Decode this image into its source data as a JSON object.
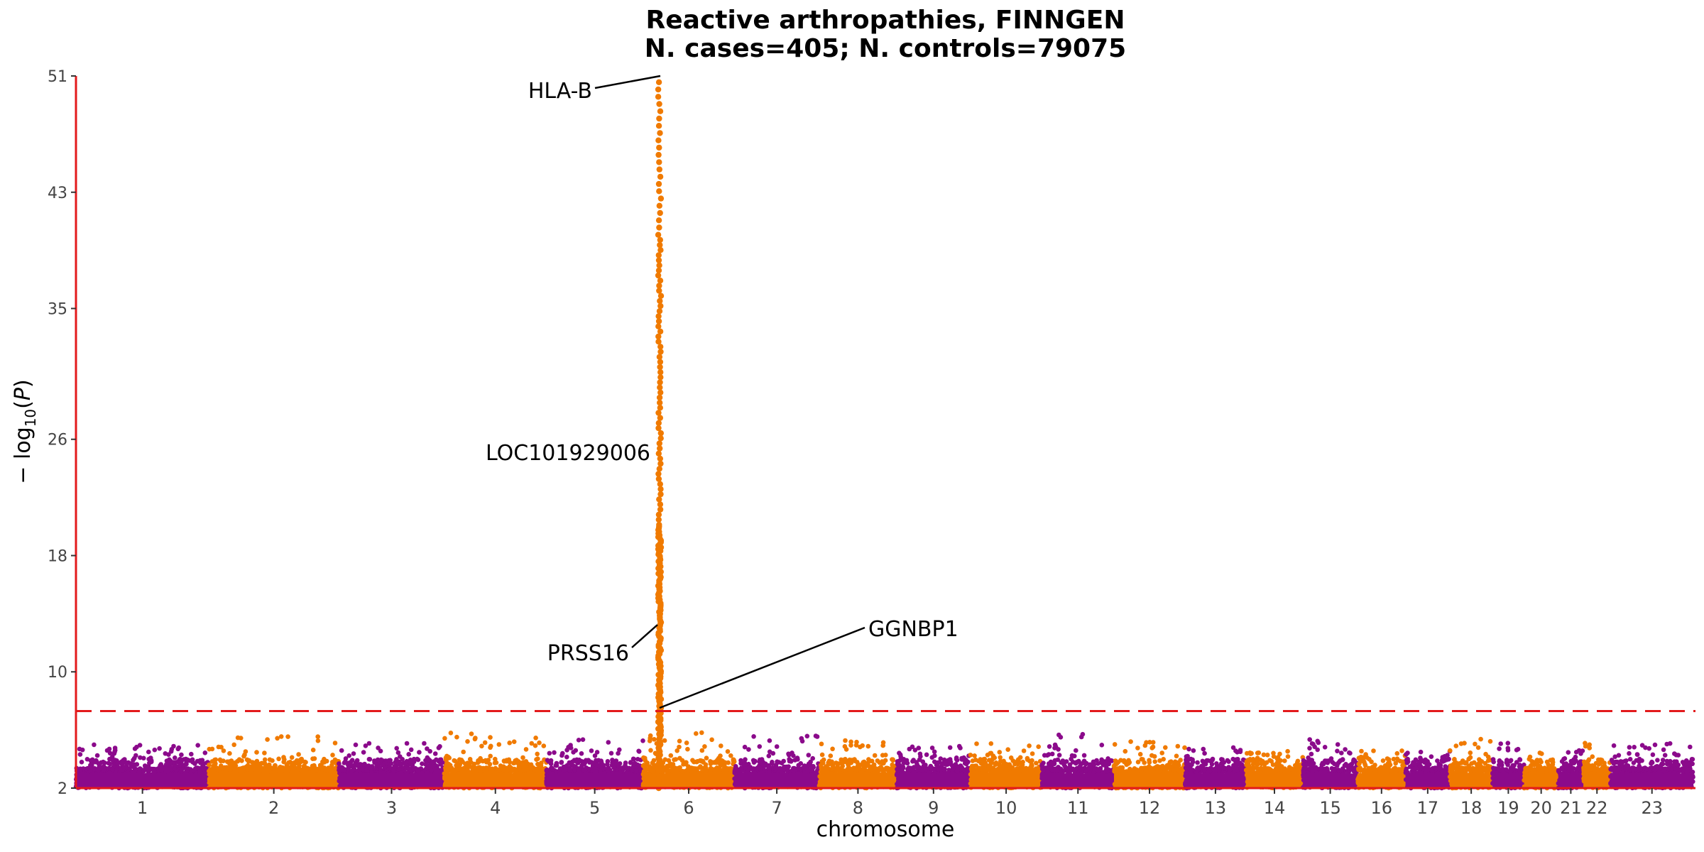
{
  "chart_data": {
    "type": "scatter",
    "subtype": "manhattan",
    "title": "Reactive arthropathies, FINNGEN",
    "subtitle": "N. cases=405; N. controls=79075",
    "xlabel": "chromosome",
    "ylabel_prefix": "− log",
    "ylabel_sub": "10",
    "ylabel_open": "(",
    "ylabel_var": "P",
    "ylabel_close": ")",
    "ylim": [
      2,
      51
    ],
    "yticks": [
      2,
      10,
      18,
      26,
      35,
      43,
      51
    ],
    "threshold": 7.3,
    "colors": {
      "odd": "#8b0a8b",
      "even": "#f07a00",
      "axis": "#e31a1c",
      "threshold": "#e31a1c",
      "label_line": "#000000"
    },
    "chromosomes": [
      {
        "name": "1",
        "size": 249
      },
      {
        "name": "2",
        "size": 243
      },
      {
        "name": "3",
        "size": 198
      },
      {
        "name": "4",
        "size": 191
      },
      {
        "name": "5",
        "size": 181
      },
      {
        "name": "6",
        "size": 171
      },
      {
        "name": "7",
        "size": 159
      },
      {
        "name": "8",
        "size": 145
      },
      {
        "name": "9",
        "size": 138
      },
      {
        "name": "10",
        "size": 134
      },
      {
        "name": "11",
        "size": 135
      },
      {
        "name": "12",
        "size": 133
      },
      {
        "name": "13",
        "size": 114
      },
      {
        "name": "14",
        "size": 107
      },
      {
        "name": "15",
        "size": 102
      },
      {
        "name": "16",
        "size": 90
      },
      {
        "name": "17",
        "size": 83
      },
      {
        "name": "18",
        "size": 80
      },
      {
        "name": "19",
        "size": 59
      },
      {
        "name": "20",
        "size": 64
      },
      {
        "name": "21",
        "size": 47
      },
      {
        "name": "22",
        "size": 51
      },
      {
        "name": "23",
        "size": 155
      }
    ],
    "background_max": [
      5.0,
      5.7,
      5.1,
      5.8,
      5.6,
      5.9,
      5.6,
      5.3,
      4.9,
      5.2,
      5.8,
      5.3,
      4.8,
      4.6,
      5.4,
      4.6,
      4.6,
      5.4,
      5.3,
      4.6,
      4.6,
      5.2,
      5.1
    ],
    "peak": {
      "chr": "6",
      "pos": 31,
      "max": 51
    },
    "gene_labels": [
      {
        "text": "HLA-B",
        "value": 51
      },
      {
        "text": "LOC101929006",
        "value": 25
      },
      {
        "text": "PRSS16",
        "value": 13.3
      },
      {
        "text": "GGNBP1",
        "value": 7.5
      }
    ]
  }
}
